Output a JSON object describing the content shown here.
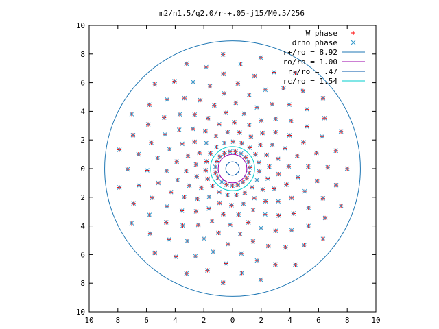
{
  "chart_data": {
    "type": "scatter",
    "title": "m2/n1.5/q2.0/r-+.05-j15/M0.5/256",
    "xlabel": "",
    "ylabel": "",
    "xlim": [
      -10,
      10
    ],
    "ylim": [
      -10,
      10
    ],
    "grid": false,
    "legend_position": "top-right",
    "x_tick_labels": [
      "10",
      "8",
      "6",
      "4",
      "2",
      "0",
      "2",
      "4",
      "6",
      "8",
      "10"
    ],
    "y_tick_labels": [
      "10",
      "8",
      "6",
      "4",
      "2",
      "0",
      "2",
      "4",
      "6",
      "8",
      "10"
    ],
    "series": [
      {
        "name": "W phase",
        "marker": "plus",
        "color": "#ff0000",
        "spiral": {
          "arms": 19,
          "points_per_arm": 11,
          "r_min": 1.2,
          "r_max": 8.0,
          "winding_turns": 1.6
        }
      },
      {
        "name": "drho phase",
        "marker": "cross",
        "color": "#3399cc",
        "spiral": {
          "arms": 19,
          "points_per_arm": 11,
          "r_min": 1.2,
          "r_max": 8.0,
          "winding_turns": 1.6
        }
      }
    ],
    "circles": [
      {
        "name": "r+/ro = 8.92",
        "radius": 8.92,
        "color": "#1f77b4"
      },
      {
        "name": "ro/ro = 1.00",
        "radius": 1.0,
        "color": "#9900aa"
      },
      {
        "name": "r-/ro = .47",
        "radius": 0.47,
        "color": "#0055aa"
      },
      {
        "name": "rc/ro = 1.54",
        "radius": 1.54,
        "color": "#00cccc"
      }
    ]
  }
}
